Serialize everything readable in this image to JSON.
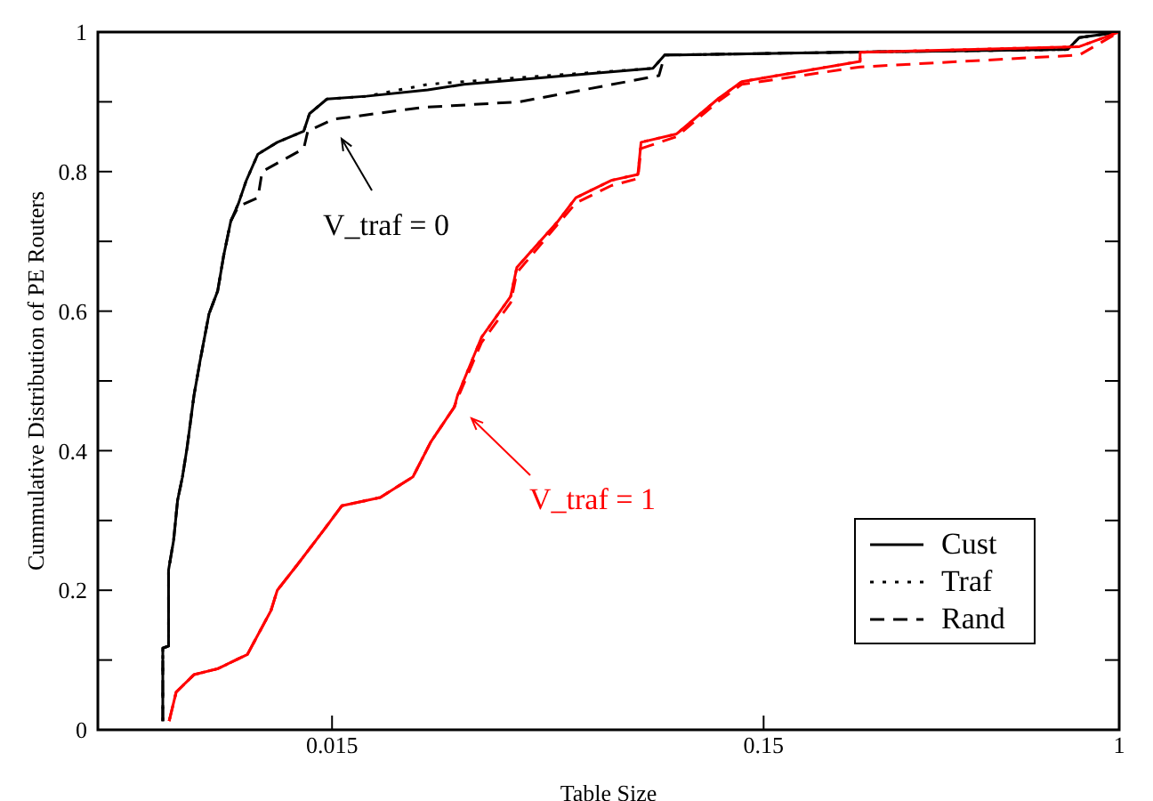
{
  "chart_data": {
    "type": "line",
    "xlabel": "Table Size",
    "ylabel": "Cummulative Distribution of PE Routers",
    "log": "x",
    "xlim": [
      0.0043,
      1
    ],
    "xticks": [
      0.015,
      0.15,
      1
    ],
    "ylim": [
      0,
      1
    ],
    "yticks": [
      0,
      {
        "value": 0.1,
        "label": null
      },
      0.2,
      {
        "value": 0.3,
        "label": null
      },
      0.4,
      {
        "value": 0.5,
        "label": null
      },
      0.6,
      {
        "value": 0.7,
        "label": null
      },
      0.8,
      {
        "value": 0.9,
        "label": null
      },
      1
    ],
    "grid": false,
    "legend": "bottom right",
    "marker": "none",
    "series": [
      {
        "name": "Cust",
        "color": "#000000",
        "line_style": "solid",
        "x": [
          0.00608,
          0.00608,
          0.00627,
          0.00627,
          0.00644,
          0.00658,
          0.00675,
          0.00692,
          0.00718,
          0.00742,
          0.00778,
          0.00815,
          0.00841,
          0.00874,
          0.0091,
          0.00949,
          0.0101,
          0.0112,
          0.0129,
          0.0133,
          0.0146,
          0.018,
          0.025,
          0.0303,
          0.0831,
          0.0885,
          0.228,
          0.759,
          0.808,
          1
        ],
        "values": [
          0.0125,
          0.117,
          0.12,
          0.229,
          0.271,
          0.329,
          0.362,
          0.404,
          0.479,
          0.529,
          0.596,
          0.629,
          0.679,
          0.729,
          0.754,
          0.787,
          0.825,
          0.842,
          0.858,
          0.883,
          0.904,
          0.908,
          0.917,
          0.925,
          0.948,
          0.967,
          0.971,
          0.975,
          0.992,
          1
        ]
      },
      {
        "name": "Traf",
        "color": "#000000",
        "line_style": "dotted",
        "x": [
          0.00608,
          0.00608,
          0.00627,
          0.00627,
          0.00644,
          0.00658,
          0.00675,
          0.00692,
          0.00718,
          0.00742,
          0.00778,
          0.00815,
          0.00841,
          0.00874,
          0.0091,
          0.00949,
          0.0101,
          0.0112,
          0.0129,
          0.0133,
          0.0146,
          0.018,
          0.025,
          0.0303,
          0.0831,
          0.0885,
          0.228,
          0.759,
          0.808,
          1
        ],
        "values": [
          0.0125,
          0.117,
          0.12,
          0.229,
          0.271,
          0.329,
          0.362,
          0.404,
          0.479,
          0.529,
          0.596,
          0.629,
          0.679,
          0.729,
          0.754,
          0.787,
          0.825,
          0.842,
          0.858,
          0.883,
          0.904,
          0.908,
          0.925,
          0.929,
          0.948,
          0.967,
          0.971,
          0.975,
          0.992,
          1
        ]
      },
      {
        "name": "Rand",
        "color": "#000000",
        "line_style": "dashed",
        "x": [
          0.00608,
          0.00608,
          0.00627,
          0.00627,
          0.00644,
          0.00658,
          0.00675,
          0.00692,
          0.00718,
          0.00742,
          0.00778,
          0.00815,
          0.00841,
          0.00874,
          0.0091,
          0.0101,
          0.01033,
          0.0129,
          0.01318,
          0.0151,
          0.0243,
          0.0408,
          0.0858,
          0.0885,
          0.228,
          0.759,
          0.808,
          1
        ],
        "values": [
          0.0125,
          0.117,
          0.12,
          0.229,
          0.271,
          0.329,
          0.362,
          0.404,
          0.479,
          0.529,
          0.596,
          0.629,
          0.679,
          0.729,
          0.75,
          0.7625,
          0.8,
          0.833,
          0.858,
          0.875,
          0.892,
          0.9,
          0.9375,
          0.967,
          0.971,
          0.975,
          0.992,
          1
        ]
      },
      {
        "color": "#ff0000",
        "line_style": "solid",
        "x": [
          0.00629,
          0.00653,
          0.00718,
          0.00815,
          0.00955,
          0.01083,
          0.0112,
          0.0125,
          0.0144,
          0.0158,
          0.0194,
          0.0231,
          0.0254,
          0.0288,
          0.0293,
          0.0333,
          0.0389,
          0.0402,
          0.0501,
          0.0551,
          0.0666,
          0.0767,
          0.078,
          0.0943,
          0.1175,
          0.1335,
          0.251,
          0.251,
          0.808,
          1
        ],
        "values": [
          0.0125,
          0.054,
          0.079,
          0.0875,
          0.108,
          0.171,
          0.2,
          0.2375,
          0.2875,
          0.321,
          0.333,
          0.3625,
          0.4125,
          0.4625,
          0.479,
          0.5625,
          0.621,
          0.6625,
          0.729,
          0.7625,
          0.7875,
          0.796,
          0.842,
          0.854,
          0.904,
          0.929,
          0.958,
          0.971,
          0.979,
          1
        ]
      },
      {
        "color": "#ff0000",
        "line_style": "dotted",
        "x": [
          0.00629,
          0.00653,
          0.00718,
          0.00815,
          0.00955,
          0.01083,
          0.0112,
          0.0125,
          0.0144,
          0.0158,
          0.0194,
          0.0231,
          0.0254,
          0.0288,
          0.0293,
          0.0333,
          0.0389,
          0.0402,
          0.0501,
          0.0551,
          0.0666,
          0.0767,
          0.078,
          0.0943,
          0.1175,
          0.1335,
          0.251,
          0.251,
          0.808,
          1
        ],
        "values": [
          0.0125,
          0.054,
          0.079,
          0.0875,
          0.108,
          0.171,
          0.2,
          0.2375,
          0.2875,
          0.321,
          0.333,
          0.3625,
          0.4125,
          0.4625,
          0.479,
          0.5625,
          0.621,
          0.6625,
          0.729,
          0.7625,
          0.7875,
          0.796,
          0.842,
          0.854,
          0.904,
          0.929,
          0.958,
          0.971,
          0.979,
          1
        ]
      },
      {
        "color": "#ff0000",
        "line_style": "dashed",
        "x": [
          0.00629,
          0.00653,
          0.00718,
          0.00815,
          0.00955,
          0.01083,
          0.0112,
          0.0125,
          0.0144,
          0.0158,
          0.0194,
          0.0231,
          0.0254,
          0.0288,
          0.0293,
          0.0333,
          0.0389,
          0.0402,
          0.0501,
          0.0551,
          0.0666,
          0.0767,
          0.078,
          0.0943,
          0.1175,
          0.1335,
          0.251,
          0.808,
          1
        ],
        "values": [
          0.0125,
          0.054,
          0.079,
          0.0875,
          0.108,
          0.171,
          0.2,
          0.2375,
          0.2875,
          0.321,
          0.333,
          0.3625,
          0.4125,
          0.4625,
          0.475,
          0.555,
          0.612,
          0.655,
          0.725,
          0.755,
          0.78,
          0.79,
          0.833,
          0.85,
          0.9,
          0.925,
          0.95,
          0.967,
          1
        ]
      }
    ],
    "annotations": [
      "V_traf = 0",
      "V_traf = 1"
    ]
  }
}
